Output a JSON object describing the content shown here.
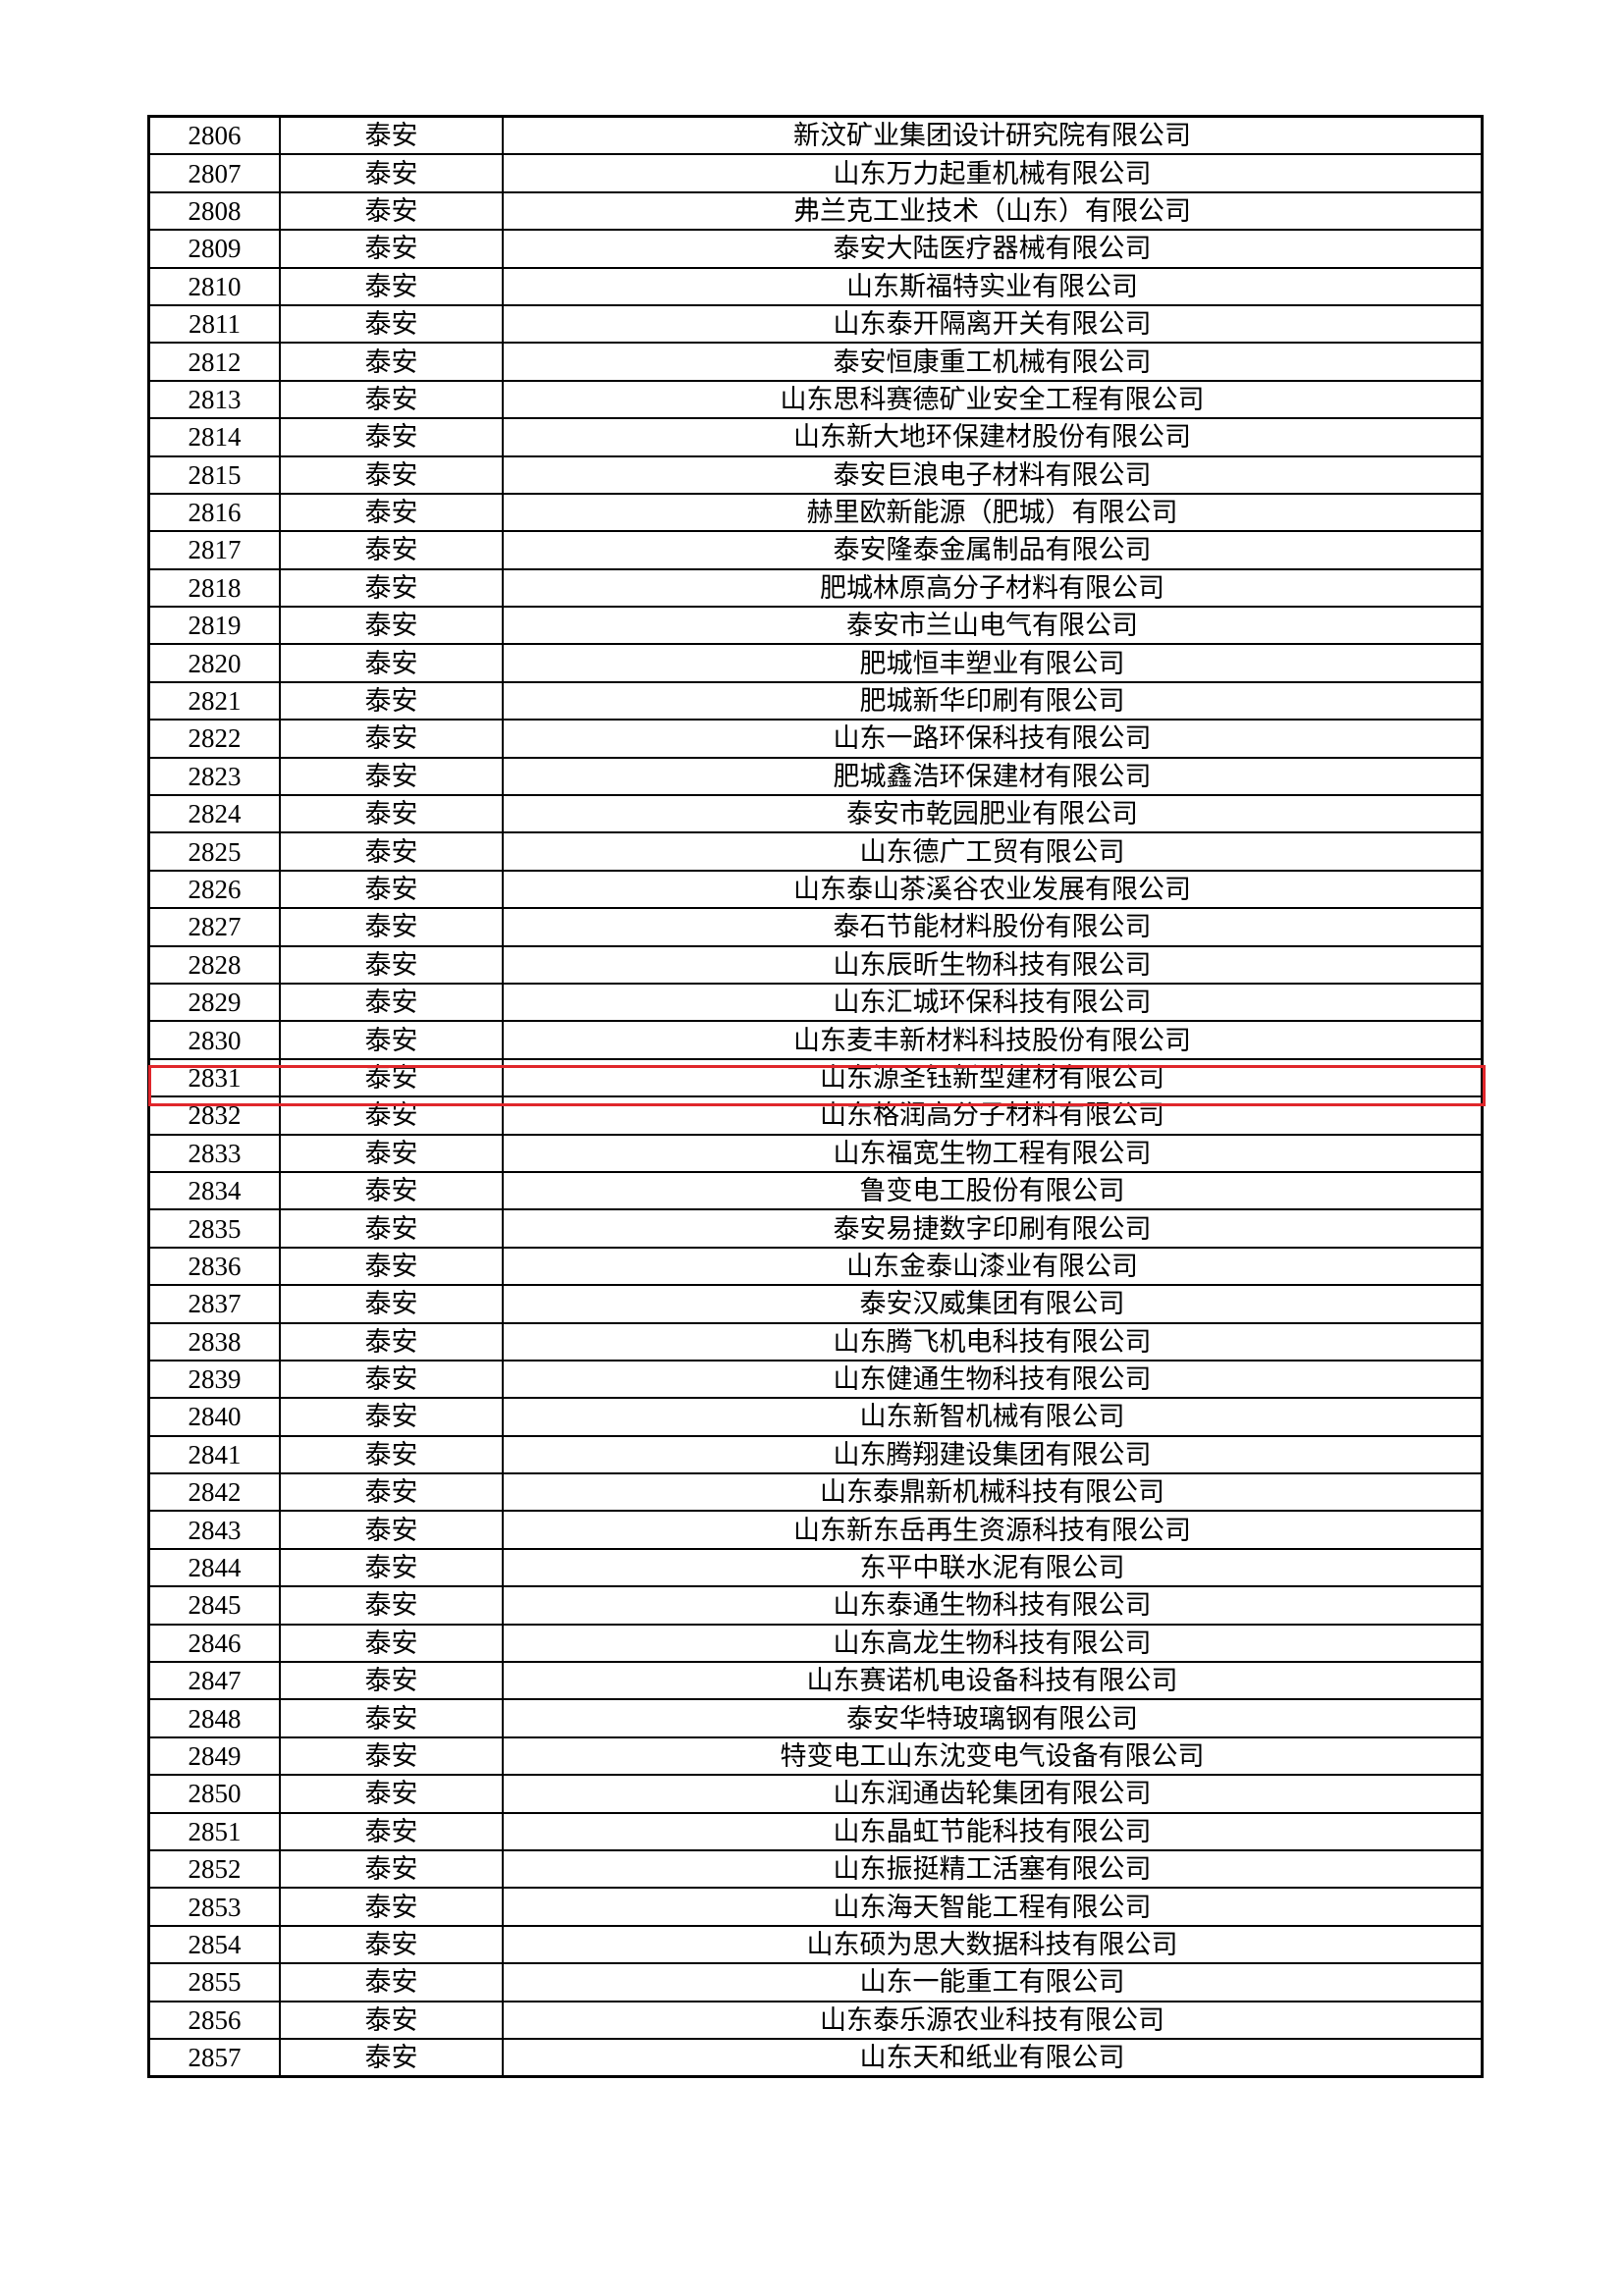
{
  "highlight_color": "#e0262b",
  "highlighted_row": "2830",
  "rows": [
    [
      "2806",
      "泰安",
      "新汶矿业集团设计研究院有限公司"
    ],
    [
      "2807",
      "泰安",
      "山东万力起重机械有限公司"
    ],
    [
      "2808",
      "泰安",
      "弗兰克工业技术（山东）有限公司"
    ],
    [
      "2809",
      "泰安",
      "泰安大陆医疗器械有限公司"
    ],
    [
      "2810",
      "泰安",
      "山东斯福特实业有限公司"
    ],
    [
      "2811",
      "泰安",
      "山东泰开隔离开关有限公司"
    ],
    [
      "2812",
      "泰安",
      "泰安恒康重工机械有限公司"
    ],
    [
      "2813",
      "泰安",
      "山东思科赛德矿业安全工程有限公司"
    ],
    [
      "2814",
      "泰安",
      "山东新大地环保建材股份有限公司"
    ],
    [
      "2815",
      "泰安",
      "泰安巨浪电子材料有限公司"
    ],
    [
      "2816",
      "泰安",
      "赫里欧新能源（肥城）有限公司"
    ],
    [
      "2817",
      "泰安",
      "泰安隆泰金属制品有限公司"
    ],
    [
      "2818",
      "泰安",
      "肥城林原高分子材料有限公司"
    ],
    [
      "2819",
      "泰安",
      "泰安市兰山电气有限公司"
    ],
    [
      "2820",
      "泰安",
      "肥城恒丰塑业有限公司"
    ],
    [
      "2821",
      "泰安",
      "肥城新华印刷有限公司"
    ],
    [
      "2822",
      "泰安",
      "山东一路环保科技有限公司"
    ],
    [
      "2823",
      "泰安",
      "肥城鑫浩环保建材有限公司"
    ],
    [
      "2824",
      "泰安",
      "泰安市乾园肥业有限公司"
    ],
    [
      "2825",
      "泰安",
      "山东德广工贸有限公司"
    ],
    [
      "2826",
      "泰安",
      "山东泰山茶溪谷农业发展有限公司"
    ],
    [
      "2827",
      "泰安",
      "泰石节能材料股份有限公司"
    ],
    [
      "2828",
      "泰安",
      "山东辰昕生物科技有限公司"
    ],
    [
      "2829",
      "泰安",
      "山东汇城环保科技有限公司"
    ],
    [
      "2830",
      "泰安",
      "山东麦丰新材料科技股份有限公司"
    ],
    [
      "2831",
      "泰安",
      "山东源圣钰新型建材有限公司"
    ],
    [
      "2832",
      "泰安",
      "山东格润高分子材料有限公司"
    ],
    [
      "2833",
      "泰安",
      "山东福宽生物工程有限公司"
    ],
    [
      "2834",
      "泰安",
      "鲁变电工股份有限公司"
    ],
    [
      "2835",
      "泰安",
      "泰安易捷数字印刷有限公司"
    ],
    [
      "2836",
      "泰安",
      "山东金泰山漆业有限公司"
    ],
    [
      "2837",
      "泰安",
      "泰安汉威集团有限公司"
    ],
    [
      "2838",
      "泰安",
      "山东腾飞机电科技有限公司"
    ],
    [
      "2839",
      "泰安",
      "山东健通生物科技有限公司"
    ],
    [
      "2840",
      "泰安",
      "山东新智机械有限公司"
    ],
    [
      "2841",
      "泰安",
      "山东腾翔建设集团有限公司"
    ],
    [
      "2842",
      "泰安",
      "山东泰鼎新机械科技有限公司"
    ],
    [
      "2843",
      "泰安",
      "山东新东岳再生资源科技有限公司"
    ],
    [
      "2844",
      "泰安",
      "东平中联水泥有限公司"
    ],
    [
      "2845",
      "泰安",
      "山东泰通生物科技有限公司"
    ],
    [
      "2846",
      "泰安",
      "山东高龙生物科技有限公司"
    ],
    [
      "2847",
      "泰安",
      "山东赛诺机电设备科技有限公司"
    ],
    [
      "2848",
      "泰安",
      "泰安华特玻璃钢有限公司"
    ],
    [
      "2849",
      "泰安",
      "特变电工山东沈变电气设备有限公司"
    ],
    [
      "2850",
      "泰安",
      "山东润通齿轮集团有限公司"
    ],
    [
      "2851",
      "泰安",
      "山东晶虹节能科技有限公司"
    ],
    [
      "2852",
      "泰安",
      "山东振挺精工活塞有限公司"
    ],
    [
      "2853",
      "泰安",
      "山东海天智能工程有限公司"
    ],
    [
      "2854",
      "泰安",
      "山东硕为思大数据科技有限公司"
    ],
    [
      "2855",
      "泰安",
      "山东一能重工有限公司"
    ],
    [
      "2856",
      "泰安",
      "山东泰乐源农业科技有限公司"
    ],
    [
      "2857",
      "泰安",
      "山东天和纸业有限公司"
    ]
  ]
}
